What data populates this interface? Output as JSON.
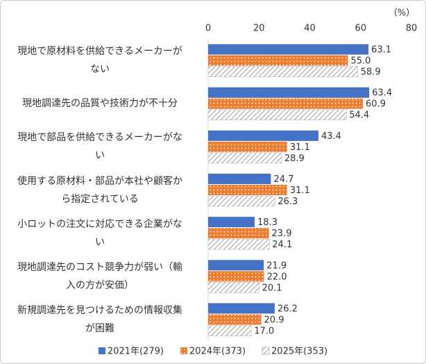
{
  "chart_data": {
    "type": "hbar",
    "x_label": "（%）",
    "categories": [
      "現地で原材料を供給できるメーカーがない",
      "現地調達先の品質や技術力が不十分",
      "現地で部品を供給できるメーカーがない",
      "使用する原材料・部品が本社や顧客から指定されている",
      "小ロットの注文に対応できる企業がない",
      "現地調達先のコスト競争力が弱い（輸入の方が安価）",
      "新規調達先を見つけるための情報収集が困難"
    ],
    "series": [
      {
        "name": "2021年(279)",
        "color": "#4472c4",
        "pattern": "solid",
        "values": [
          63.1,
          63.4,
          43.4,
          24.7,
          18.3,
          21.9,
          26.2
        ],
        "value_labels": [
          "63.1",
          "63.4",
          "43.4",
          "24.7",
          "18.3",
          "21.9",
          "26.2"
        ]
      },
      {
        "name": "2024年(373)",
        "color": "#ed7d31",
        "pattern": "dots",
        "values": [
          55.0,
          60.9,
          31.1,
          31.1,
          23.9,
          22.0,
          20.9
        ],
        "value_labels": [
          "55.0",
          "60.9",
          "31.1",
          "31.1",
          "23.9",
          "22.0",
          "20.9"
        ]
      },
      {
        "name": "2025年(353)",
        "color": "#a5a5a5",
        "pattern": "hatch",
        "values": [
          58.9,
          54.4,
          28.9,
          26.3,
          24.1,
          20.1,
          17.0
        ],
        "value_labels": [
          "58.9",
          "54.4",
          "28.9",
          "26.3",
          "24.1",
          "20.1",
          "17.0"
        ]
      }
    ],
    "xlim": [
      0,
      80
    ],
    "xticks": [
      0,
      20,
      40,
      60,
      80
    ],
    "legend": "bottom"
  }
}
